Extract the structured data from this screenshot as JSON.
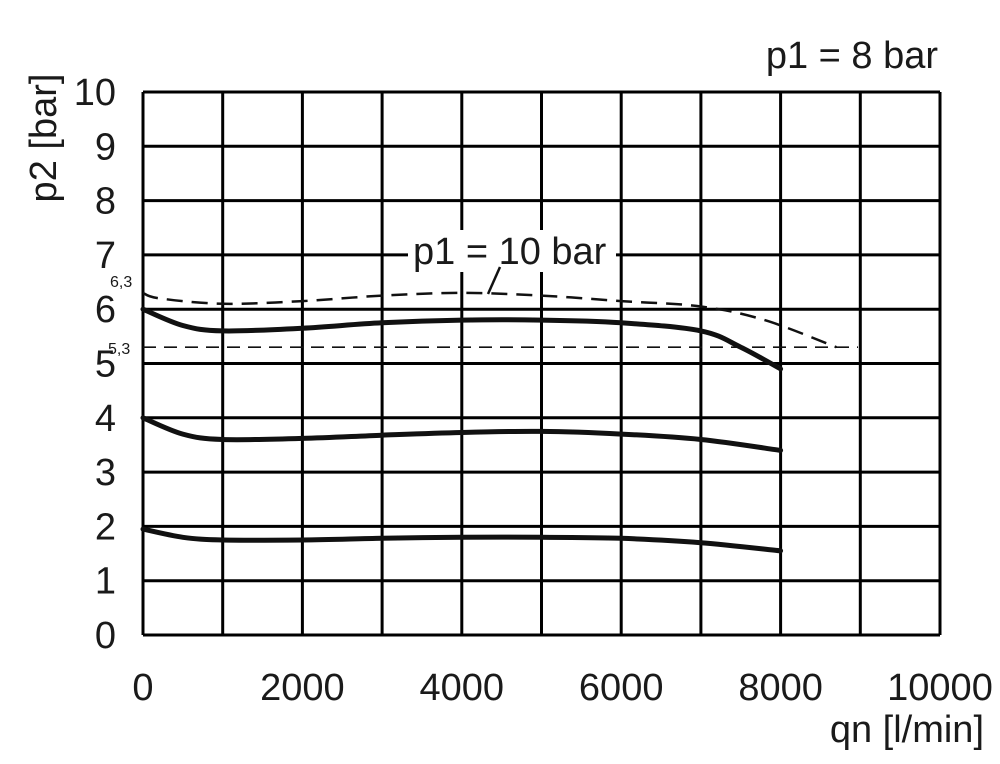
{
  "chart_data": {
    "type": "line",
    "xlabel": "qn [l/min]",
    "ylabel": "p2 [bar]",
    "xlim": [
      0,
      10000
    ],
    "ylim": [
      0,
      10
    ],
    "x_ticks": [
      "0",
      "2000",
      "4000",
      "6000",
      "8000",
      "10000"
    ],
    "y_ticks": [
      "0",
      "1",
      "2",
      "3",
      "4",
      "5",
      "6",
      "7",
      "8",
      "9",
      "10"
    ],
    "grid": true,
    "annotations": {
      "p1_8": "p1 = 8 bar",
      "p1_10": "p1 = 10 bar",
      "ref_63": "6,3",
      "ref_53": "5,3"
    },
    "series": [
      {
        "style": "solid",
        "x": [
          0,
          500,
          1000,
          2000,
          3000,
          4000,
          5000,
          6000,
          7000,
          7500,
          8000
        ],
        "y": [
          6.0,
          5.7,
          5.6,
          5.65,
          5.75,
          5.8,
          5.8,
          5.75,
          5.6,
          5.3,
          4.9
        ]
      },
      {
        "style": "solid",
        "x": [
          0,
          500,
          1000,
          2000,
          3000,
          4000,
          5000,
          6000,
          7000,
          8000
        ],
        "y": [
          4.0,
          3.7,
          3.6,
          3.62,
          3.68,
          3.73,
          3.75,
          3.7,
          3.6,
          3.4
        ]
      },
      {
        "style": "solid",
        "x": [
          0,
          500,
          1000,
          2000,
          3000,
          4000,
          5000,
          6000,
          7000,
          8000
        ],
        "y": [
          1.95,
          1.8,
          1.75,
          1.75,
          1.78,
          1.8,
          1.8,
          1.78,
          1.7,
          1.55
        ]
      },
      {
        "style": "dashed",
        "x": [
          0,
          200,
          1000,
          2000,
          3000,
          4000,
          5000,
          6000,
          7000,
          7800,
          8700
        ],
        "y": [
          6.3,
          6.2,
          6.1,
          6.15,
          6.25,
          6.3,
          6.25,
          6.15,
          6.05,
          5.8,
          5.3
        ]
      }
    ],
    "reference_lines": [
      5.3
    ]
  }
}
